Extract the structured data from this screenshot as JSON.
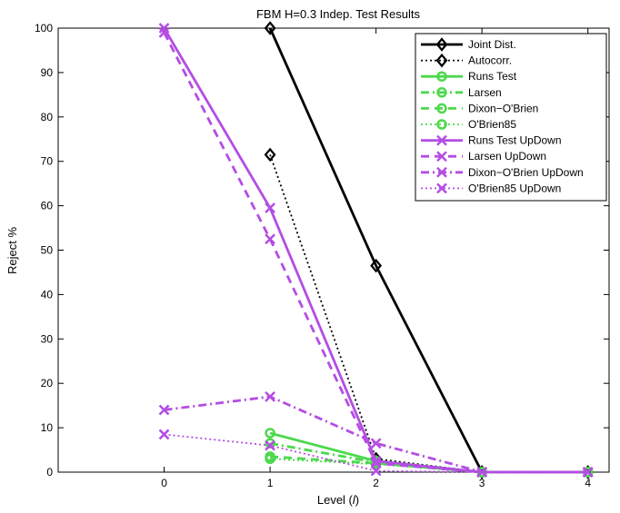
{
  "chart_data": {
    "type": "line",
    "title": "FBM H=0.3 Indep. Test Results",
    "xlabel": "Level (",
    "xlabel_var": "l",
    "xlabel_close": ")",
    "ylabel": "Reject %",
    "xlim": [
      -1.0,
      4.2
    ],
    "ylim": [
      0,
      100
    ],
    "xticks": [
      0,
      1,
      2,
      3,
      4
    ],
    "yticks": [
      0,
      10,
      20,
      30,
      40,
      50,
      60,
      70,
      80,
      90,
      100
    ],
    "grid": false,
    "legend_position": "top-right",
    "series": [
      {
        "name": "Joint Dist.",
        "color": "#000000",
        "dash": "solid",
        "marker": "diamond",
        "x": [
          1,
          2,
          3,
          4
        ],
        "y": [
          100,
          46.5,
          0,
          0
        ]
      },
      {
        "name": "Autocorr.",
        "color": "#000000",
        "dash": "dotted",
        "marker": "diamond",
        "x": [
          1,
          2,
          3,
          4
        ],
        "y": [
          71.5,
          3,
          0,
          0
        ]
      },
      {
        "name": "Runs Test",
        "color": "#4cd94c",
        "dash": "solid",
        "marker": "circle",
        "x": [
          1,
          2,
          3,
          4
        ],
        "y": [
          8.8,
          2.5,
          0,
          0
        ]
      },
      {
        "name": "Larsen",
        "color": "#4cd94c",
        "dash": "dashdot",
        "marker": "circle",
        "x": [
          1,
          2,
          3,
          4
        ],
        "y": [
          6.5,
          2.2,
          0,
          0
        ]
      },
      {
        "name": "Dixon−O'Brien",
        "color": "#4cd94c",
        "dash": "dashed",
        "marker": "circle",
        "x": [
          1,
          2,
          3,
          4
        ],
        "y": [
          3.5,
          2.0,
          0,
          0
        ]
      },
      {
        "name": "O'Brien85",
        "color": "#4cd94c",
        "dash": "dotted",
        "marker": "circle",
        "x": [
          1,
          2,
          3,
          4
        ],
        "y": [
          3.0,
          1.8,
          0,
          0
        ]
      },
      {
        "name": "Runs Test UpDown",
        "color": "#b44de4",
        "dash": "solid",
        "marker": "x",
        "x": [
          0,
          1,
          2,
          3,
          4
        ],
        "y": [
          100,
          59.5,
          2.5,
          0,
          0
        ]
      },
      {
        "name": "Larsen UpDown",
        "color": "#b44de4",
        "dash": "dashed",
        "marker": "x",
        "x": [
          0,
          1,
          2,
          3,
          4
        ],
        "y": [
          99,
          52.5,
          2.0,
          0,
          0
        ]
      },
      {
        "name": "Dixon−O'Brien UpDown",
        "color": "#b44de4",
        "dash": "dashdot",
        "marker": "x",
        "x": [
          0,
          1,
          2,
          3,
          4
        ],
        "y": [
          14,
          17,
          6.5,
          0,
          0
        ]
      },
      {
        "name": "O'Brien85 UpDown",
        "color": "#b44de4",
        "dash": "dotted",
        "marker": "x",
        "x": [
          0,
          1,
          2,
          3,
          4
        ],
        "y": [
          8.5,
          6.0,
          0.3,
          0,
          0
        ]
      }
    ]
  }
}
